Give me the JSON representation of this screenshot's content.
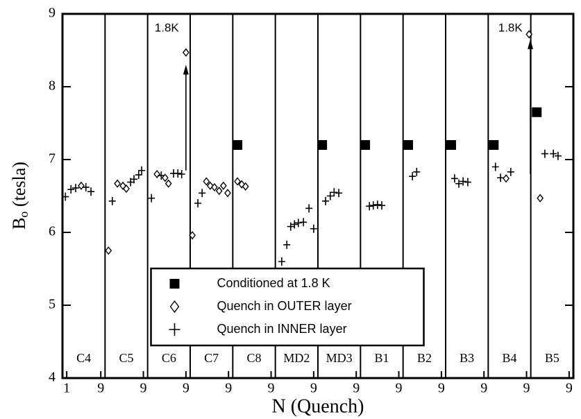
{
  "chart_data": {
    "type": "scatter",
    "ylabel": {
      "main": "B",
      "sub": "o",
      "rest": " (tesla)"
    },
    "xlabel": "N (Quench)",
    "xlim": [
      0,
      120
    ],
    "ylim": [
      4,
      9
    ],
    "yticks": [
      4,
      5,
      6,
      7,
      8,
      9
    ],
    "xticks": [
      1,
      9,
      {
        "value": 19,
        "label": "9"
      },
      {
        "value": 29,
        "label": "9"
      },
      {
        "value": 39,
        "label": "9"
      },
      {
        "value": 49,
        "label": "9"
      },
      {
        "value": 59,
        "label": "9"
      },
      {
        "value": 69,
        "label": "9"
      },
      {
        "value": 79,
        "label": "9"
      },
      {
        "value": 89,
        "label": "9"
      },
      {
        "value": 99,
        "label": "9"
      },
      {
        "value": 109,
        "label": "9"
      },
      {
        "value": 119,
        "label": "9"
      }
    ],
    "magnets": [
      "C4",
      "C5",
      "C6",
      "C7",
      "C8",
      "MD2",
      "MD3",
      "B1",
      "B2",
      "B3",
      "B4",
      "B5"
    ],
    "legend": "lower center",
    "series": [
      {
        "name": "Conditioned at 1.8 K",
        "marker": "square",
        "color": "#000000",
        "x": [
          41.1,
          61.0,
          71.1,
          81.2,
          91.3,
          101.3,
          111.4
        ],
        "values": [
          7.2,
          7.2,
          7.2,
          7.2,
          7.2,
          7.2,
          7.65
        ]
      },
      {
        "name": "Quench in OUTER layer",
        "marker": "diamond",
        "color": "#000000",
        "x": [
          4.4,
          10.8,
          12.9,
          14.2,
          15.0,
          22.2,
          24.1,
          24.9,
          29.0,
          30.5,
          33.8,
          34.7,
          35.7,
          36.8,
          37.8,
          38.8,
          41.1,
          42.1,
          43.0,
          104.2,
          109.6,
          112.2
        ],
        "values": [
          6.64,
          5.75,
          6.67,
          6.64,
          6.6,
          6.8,
          6.75,
          6.67,
          8.47,
          5.96,
          6.7,
          6.64,
          6.62,
          6.57,
          6.64,
          6.54,
          6.7,
          6.66,
          6.63,
          6.74,
          8.72,
          6.47
        ]
      },
      {
        "name": "Quench in INNER layer",
        "marker": "plus",
        "color": "#000000",
        "x": [
          0.7,
          2.0,
          3.1,
          5.5,
          6.7,
          11.7,
          16.0,
          16.8,
          17.9,
          18.6,
          20.9,
          23.2,
          26.1,
          27.1,
          28.0,
          31.8,
          32.8,
          51.5,
          52.7,
          53.6,
          54.5,
          55.4,
          56.6,
          57.9,
          59.0,
          61.8,
          62.9,
          63.8,
          64.9,
          72.1,
          73.0,
          74.0,
          75.0,
          82.2,
          83.2,
          92.1,
          93.1,
          94.1,
          95.2,
          101.7,
          102.9,
          105.3,
          113.3,
          115.3,
          116.4
        ],
        "values": [
          6.49,
          6.59,
          6.61,
          6.62,
          6.56,
          6.43,
          6.69,
          6.73,
          6.79,
          6.85,
          6.47,
          6.78,
          6.81,
          6.81,
          6.8,
          6.4,
          6.54,
          5.6,
          5.83,
          6.08,
          6.11,
          6.13,
          6.14,
          6.33,
          6.05,
          6.43,
          6.5,
          6.55,
          6.54,
          6.36,
          6.37,
          6.38,
          6.37,
          6.77,
          6.83,
          6.74,
          6.67,
          6.7,
          6.69,
          6.9,
          6.75,
          6.83,
          7.08,
          7.08,
          7.05
        ]
      }
    ],
    "arrows": [
      {
        "x": 29.0,
        "y0": 6.85,
        "y1": 8.3
      },
      {
        "x": 109.9,
        "y0": 6.8,
        "y1": 8.65
      }
    ],
    "annotations": [
      {
        "text": "1.8K",
        "x": 24.5,
        "y": 8.8
      },
      {
        "text": "1.8K",
        "x": 105.2,
        "y": 8.8
      }
    ]
  }
}
